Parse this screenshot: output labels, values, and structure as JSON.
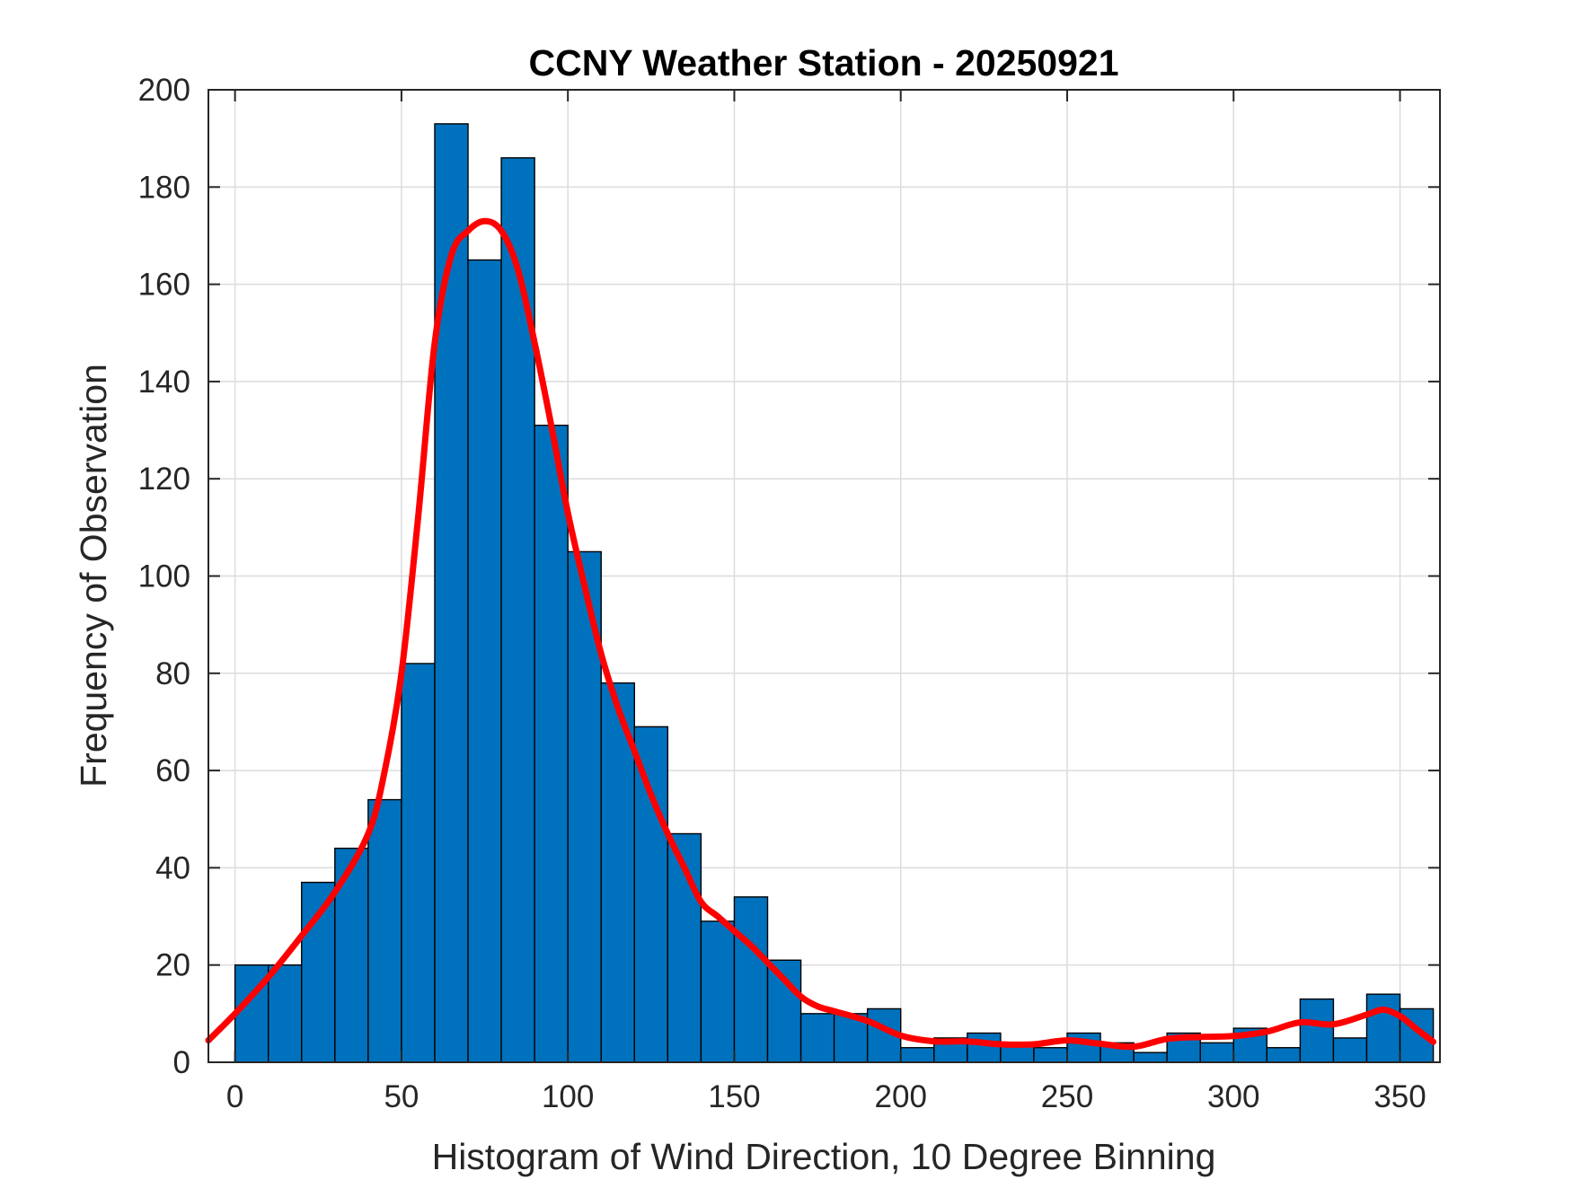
{
  "chart_data": {
    "type": "bar",
    "title": "CCNY Weather Station - 20250921",
    "xlabel": "Histogram of Wind Direction, 10 Degree Binning",
    "ylabel": "Frequency of Observation",
    "xlim": [
      -8,
      362
    ],
    "ylim": [
      0,
      200
    ],
    "xticks": [
      0,
      50,
      100,
      150,
      200,
      250,
      300,
      350
    ],
    "yticks": [
      0,
      20,
      40,
      60,
      80,
      100,
      120,
      140,
      160,
      180,
      200
    ],
    "grid": true,
    "bin_width": 10,
    "bins": [
      {
        "start": 0,
        "value": 20
      },
      {
        "start": 10,
        "value": 20
      },
      {
        "start": 20,
        "value": 37
      },
      {
        "start": 30,
        "value": 44
      },
      {
        "start": 40,
        "value": 54
      },
      {
        "start": 50,
        "value": 82
      },
      {
        "start": 60,
        "value": 193
      },
      {
        "start": 70,
        "value": 165
      },
      {
        "start": 80,
        "value": 186
      },
      {
        "start": 90,
        "value": 131
      },
      {
        "start": 100,
        "value": 105
      },
      {
        "start": 110,
        "value": 78
      },
      {
        "start": 120,
        "value": 69
      },
      {
        "start": 130,
        "value": 47
      },
      {
        "start": 140,
        "value": 29
      },
      {
        "start": 150,
        "value": 34
      },
      {
        "start": 160,
        "value": 21
      },
      {
        "start": 170,
        "value": 10
      },
      {
        "start": 180,
        "value": 10
      },
      {
        "start": 190,
        "value": 11
      },
      {
        "start": 200,
        "value": 3
      },
      {
        "start": 210,
        "value": 5
      },
      {
        "start": 220,
        "value": 6
      },
      {
        "start": 230,
        "value": 4
      },
      {
        "start": 240,
        "value": 3
      },
      {
        "start": 250,
        "value": 6
      },
      {
        "start": 260,
        "value": 4
      },
      {
        "start": 270,
        "value": 2
      },
      {
        "start": 280,
        "value": 6
      },
      {
        "start": 290,
        "value": 4
      },
      {
        "start": 300,
        "value": 7
      },
      {
        "start": 310,
        "value": 3
      },
      {
        "start": 320,
        "value": 13
      },
      {
        "start": 330,
        "value": 5
      },
      {
        "start": 340,
        "value": 14
      },
      {
        "start": 350,
        "value": 11
      }
    ],
    "bar_color": "#0072BD",
    "bar_edge_color": "#000000",
    "fit_curve": {
      "color": "#FF0000",
      "points": [
        [
          -8,
          4.5
        ],
        [
          0,
          10
        ],
        [
          10,
          17.5
        ],
        [
          20,
          26
        ],
        [
          30,
          35
        ],
        [
          40,
          47
        ],
        [
          45,
          60
        ],
        [
          50,
          80
        ],
        [
          55,
          112
        ],
        [
          60,
          148
        ],
        [
          65,
          166
        ],
        [
          70,
          171
        ],
        [
          75,
          173
        ],
        [
          80,
          171
        ],
        [
          85,
          163
        ],
        [
          90,
          148
        ],
        [
          95,
          131
        ],
        [
          100,
          113
        ],
        [
          105,
          98
        ],
        [
          110,
          84
        ],
        [
          115,
          73
        ],
        [
          120,
          64
        ],
        [
          125,
          55
        ],
        [
          130,
          47
        ],
        [
          135,
          40
        ],
        [
          140,
          33
        ],
        [
          145,
          30
        ],
        [
          150,
          27
        ],
        [
          155,
          24
        ],
        [
          160,
          20.5
        ],
        [
          165,
          17
        ],
        [
          170,
          13.5
        ],
        [
          175,
          11.5
        ],
        [
          180,
          10.5
        ],
        [
          190,
          8.5
        ],
        [
          200,
          5.5
        ],
        [
          210,
          4.3
        ],
        [
          220,
          4.3
        ],
        [
          230,
          3.7
        ],
        [
          240,
          3.7
        ],
        [
          250,
          4.5
        ],
        [
          260,
          3.8
        ],
        [
          270,
          3.2
        ],
        [
          280,
          4.8
        ],
        [
          290,
          5.2
        ],
        [
          300,
          5.4
        ],
        [
          310,
          6.3
        ],
        [
          320,
          8.2
        ],
        [
          330,
          7.8
        ],
        [
          340,
          9.8
        ],
        [
          345,
          10.8
        ],
        [
          350,
          9.5
        ],
        [
          355,
          6.8
        ],
        [
          360,
          4.2
        ]
      ]
    }
  }
}
